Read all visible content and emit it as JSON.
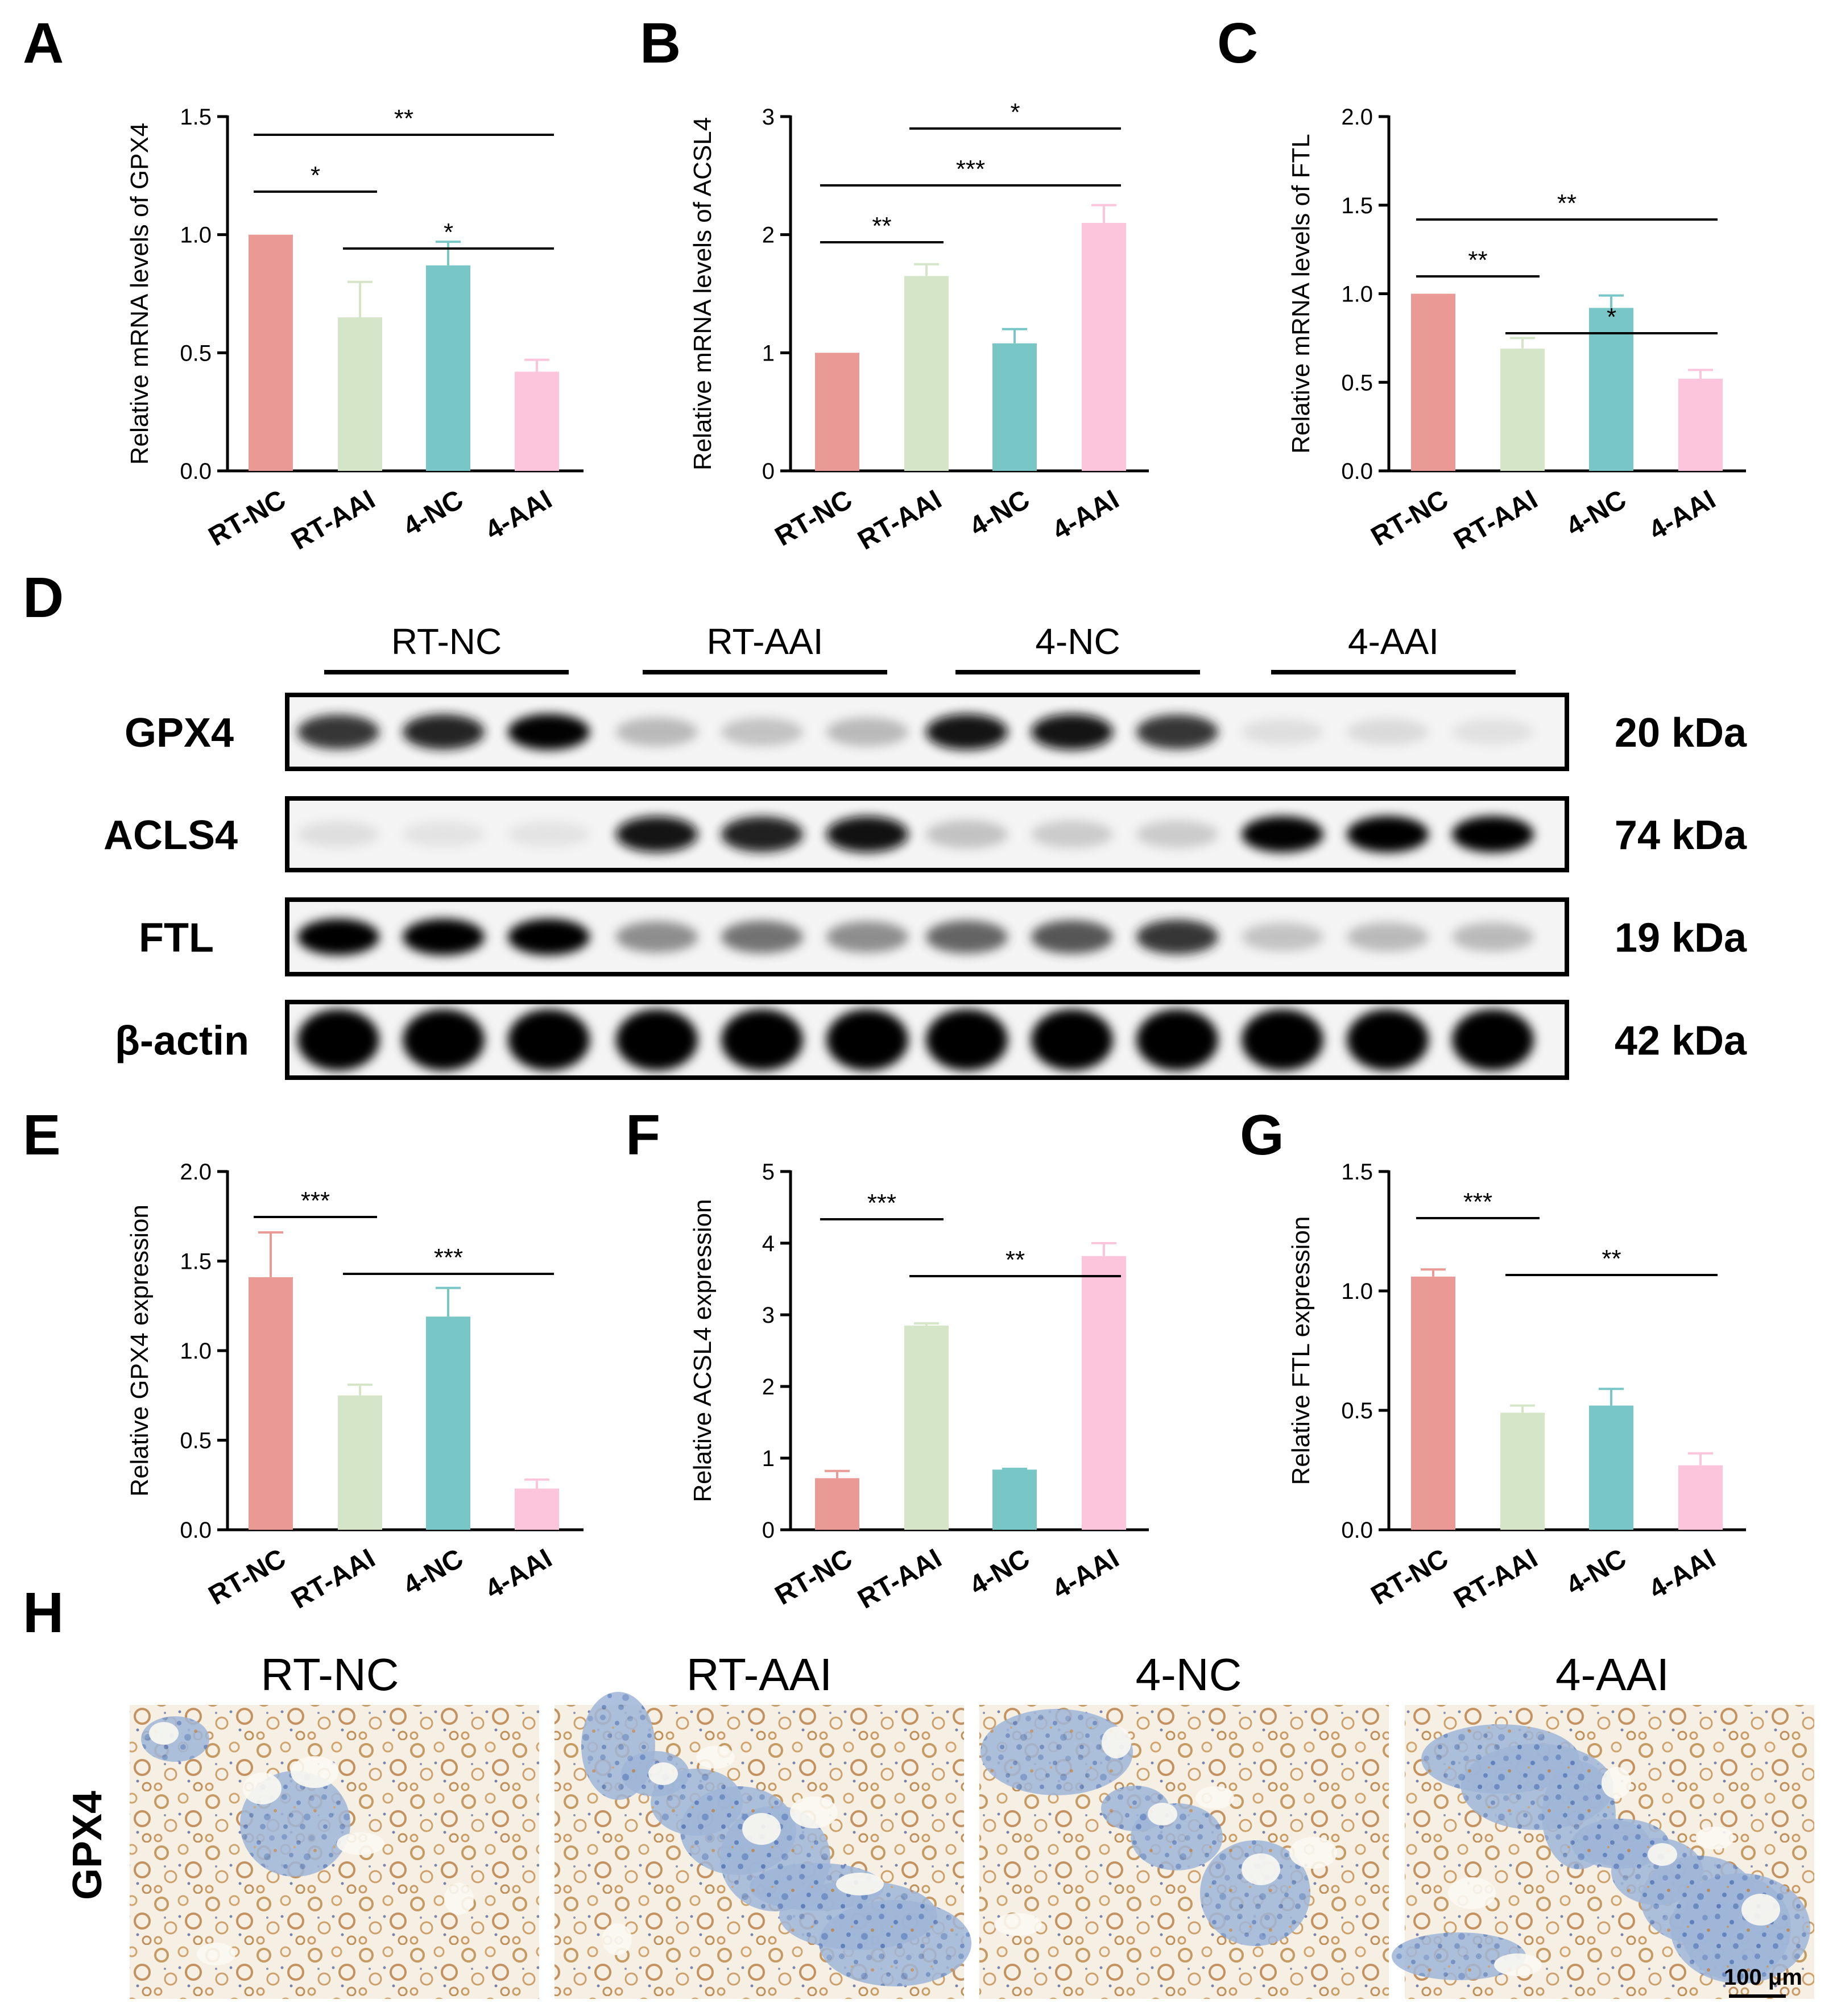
{
  "colors": {
    "RT-NC": "#ea9a95",
    "RT-AAI": "#d5e6c8",
    "4-NC": "#78c6c6",
    "4-AAI": "#fcc5dc"
  },
  "chart_data": [
    {
      "panel": "A",
      "type": "bar",
      "ylabel": "Relative mRNA levels of GPX4",
      "categories": [
        "RT-NC",
        "RT-AAI",
        "4-NC",
        "4-AAI"
      ],
      "values": [
        1.0,
        0.65,
        0.87,
        0.42
      ],
      "errors": [
        0,
        0.15,
        0.1,
        0.05
      ],
      "ylim": [
        0,
        1.5
      ],
      "yticks": [
        "0.0",
        "0.5",
        "1.0",
        "1.5"
      ],
      "significance": [
        {
          "from": 0,
          "to": 3,
          "label": "**"
        },
        {
          "from": 0,
          "to": 1,
          "label": "*"
        },
        {
          "from": 1,
          "to": 3,
          "label": "*"
        }
      ]
    },
    {
      "panel": "B",
      "type": "bar",
      "ylabel": "Relative mRNA levels of ACSL4",
      "categories": [
        "RT-NC",
        "RT-AAI",
        "4-NC",
        "4-AAI"
      ],
      "values": [
        1.0,
        1.65,
        1.08,
        2.1
      ],
      "errors": [
        0,
        0.1,
        0.12,
        0.15
      ],
      "ylim": [
        0,
        3
      ],
      "yticks": [
        "0",
        "1",
        "2",
        "3"
      ],
      "significance": [
        {
          "from": 1,
          "to": 3,
          "label": "*"
        },
        {
          "from": 0,
          "to": 3,
          "label": "***"
        },
        {
          "from": 0,
          "to": 1,
          "label": "**"
        }
      ]
    },
    {
      "panel": "C",
      "type": "bar",
      "ylabel": "Relative mRNA levels of FTL",
      "categories": [
        "RT-NC",
        "RT-AAI",
        "4-NC",
        "4-AAI"
      ],
      "values": [
        1.0,
        0.69,
        0.92,
        0.52
      ],
      "errors": [
        0,
        0.06,
        0.07,
        0.05
      ],
      "ylim": [
        0,
        2.0
      ],
      "yticks": [
        "0.0",
        "0.5",
        "1.0",
        "1.5",
        "2.0"
      ],
      "significance": [
        {
          "from": 0,
          "to": 3,
          "label": "**"
        },
        {
          "from": 0,
          "to": 1,
          "label": "**"
        },
        {
          "from": 1,
          "to": 3,
          "label": "*"
        }
      ]
    },
    {
      "panel": "E",
      "type": "bar",
      "ylabel": "Relative GPX4 expression",
      "categories": [
        "RT-NC",
        "RT-AAI",
        "4-NC",
        "4-AAI"
      ],
      "values": [
        1.41,
        0.75,
        1.19,
        0.23
      ],
      "errors": [
        0.25,
        0.06,
        0.16,
        0.05
      ],
      "ylim": [
        0,
        2.0
      ],
      "yticks": [
        "0.0",
        "0.5",
        "1.0",
        "1.5",
        "2.0"
      ],
      "significance": [
        {
          "from": 0,
          "to": 1,
          "label": "***"
        },
        {
          "from": 1,
          "to": 3,
          "label": "***"
        }
      ]
    },
    {
      "panel": "F",
      "type": "bar",
      "ylabel": "Relative ACSL4 expression",
      "categories": [
        "RT-NC",
        "RT-AAI",
        "4-NC",
        "4-AAI"
      ],
      "values": [
        0.72,
        2.85,
        0.84,
        3.82
      ],
      "errors": [
        0.1,
        0.03,
        0.01,
        0.18
      ],
      "ylim": [
        0,
        5
      ],
      "yticks": [
        "0",
        "1",
        "2",
        "3",
        "4",
        "5"
      ],
      "significance": [
        {
          "from": 0,
          "to": 1,
          "label": "***"
        },
        {
          "from": 1,
          "to": 3,
          "label": "**"
        }
      ]
    },
    {
      "panel": "G",
      "type": "bar",
      "ylabel": "Relative FTL expression",
      "categories": [
        "RT-NC",
        "RT-AAI",
        "4-NC",
        "4-AAI"
      ],
      "values": [
        1.06,
        0.49,
        0.52,
        0.27
      ],
      "errors": [
        0.03,
        0.03,
        0.07,
        0.05
      ],
      "ylim": [
        0,
        1.5
      ],
      "yticks": [
        "0.0",
        "0.5",
        "1.0",
        "1.5"
      ],
      "significance": [
        {
          "from": 0,
          "to": 1,
          "label": "***"
        },
        {
          "from": 1,
          "to": 3,
          "label": "**"
        }
      ]
    }
  ],
  "western_blot": {
    "panel": "D",
    "groups": [
      "RT-NC",
      "RT-AAI",
      "4-NC",
      "4-AAI"
    ],
    "proteins": [
      {
        "name": "GPX4",
        "size": "20 kDa",
        "intensity": [
          0.85,
          0.9,
          0.98,
          0.35,
          0.3,
          0.35,
          0.95,
          0.95,
          0.85,
          0.12,
          0.15,
          0.1
        ]
      },
      {
        "name": "ACLS4",
        "size": "74 kDa",
        "intensity": [
          0.12,
          0.08,
          0.08,
          0.95,
          0.92,
          0.97,
          0.3,
          0.25,
          0.25,
          0.98,
          1.0,
          1.0
        ]
      },
      {
        "name": "FTL",
        "size": "19 kDa",
        "intensity": [
          1.0,
          1.0,
          1.0,
          0.55,
          0.65,
          0.55,
          0.7,
          0.75,
          0.85,
          0.3,
          0.35,
          0.35
        ]
      },
      {
        "name": "β-actin",
        "size": "42 kDa",
        "intensity": [
          1.0,
          1.0,
          1.0,
          1.0,
          1.0,
          1.0,
          1.0,
          1.0,
          1.0,
          1.0,
          1.0,
          1.0
        ]
      }
    ]
  },
  "ihc": {
    "panel": "H",
    "row_label": "GPX4",
    "columns": [
      "RT-NC",
      "RT-AAI",
      "4-NC",
      "4-AAI"
    ],
    "blue_fraction": [
      0.15,
      0.6,
      0.3,
      0.7
    ],
    "scale_bar": "100 μm"
  }
}
